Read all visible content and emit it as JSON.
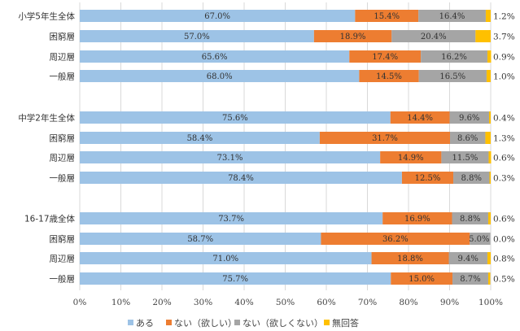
{
  "chart_data": {
    "type": "bar",
    "orientation": "horizontal",
    "stacked": true,
    "categories": [
      "小学5年生全体",
      "困窮層",
      "周辺層",
      "一般層",
      "中学2年生全体",
      "困窮層",
      "周辺層",
      "一般層",
      "16-17歳全体",
      "困窮層",
      "周辺層",
      "一般層"
    ],
    "groups": [
      {
        "rows": [
          0,
          1,
          2,
          3
        ]
      },
      {
        "rows": [
          4,
          5,
          6,
          7
        ]
      },
      {
        "rows": [
          8,
          9,
          10,
          11
        ]
      }
    ],
    "series": [
      {
        "name": "ある",
        "color": "#9DC3E6",
        "values": [
          67.0,
          57.0,
          65.6,
          68.0,
          75.6,
          58.4,
          73.1,
          78.4,
          73.7,
          58.7,
          71.0,
          75.7
        ],
        "labels": [
          "67.0%",
          "57.0%",
          "65.6%",
          "68.0%",
          "75.6%",
          "58.4%",
          "73.1%",
          "78.4%",
          "73.7%",
          "58.7%",
          "71.0%",
          "75.7%"
        ]
      },
      {
        "name": "ない（欲しい）",
        "color": "#ED7D31",
        "values": [
          15.4,
          18.9,
          17.4,
          14.5,
          14.4,
          31.7,
          14.9,
          12.5,
          16.9,
          36.2,
          18.8,
          15.0
        ],
        "labels": [
          "15.4%",
          "18.9%",
          "17.4%",
          "14.5%",
          "14.4%",
          "31.7%",
          "14.9%",
          "12.5%",
          "16.9%",
          "36.2%",
          "18.8%",
          "15.0%"
        ]
      },
      {
        "name": "ない（欲しくない）",
        "color": "#A5A5A5",
        "values": [
          16.4,
          20.4,
          16.2,
          16.5,
          9.6,
          8.6,
          11.5,
          8.8,
          8.8,
          5.0,
          9.4,
          8.7
        ],
        "labels": [
          "16.4%",
          "20.4%",
          "16.2%",
          "16.5%",
          "9.6%",
          "8.6%",
          "11.5%",
          "8.8%",
          "8.8%",
          "5.0%",
          "9.4%",
          "8.7%"
        ]
      },
      {
        "name": "無回答",
        "color": "#FFC000",
        "values": [
          1.2,
          3.7,
          0.9,
          1.0,
          0.4,
          1.3,
          0.6,
          0.3,
          0.6,
          0.0,
          0.8,
          0.5
        ],
        "labels": [
          "1.2%",
          "3.7%",
          "0.9%",
          "1.0%",
          "0.4%",
          "1.3%",
          "0.6%",
          "0.3%",
          "0.6%",
          "0.0%",
          "0.8%",
          "0.5%"
        ]
      }
    ],
    "xlim": [
      0,
      100
    ],
    "xticks": [
      "0%",
      "10%",
      "20%",
      "30%",
      "40%",
      "50%",
      "60%",
      "70%",
      "80%",
      "90%",
      "100%"
    ],
    "grid": true,
    "legend": "bottom",
    "title": "",
    "xlabel": "",
    "ylabel": ""
  }
}
